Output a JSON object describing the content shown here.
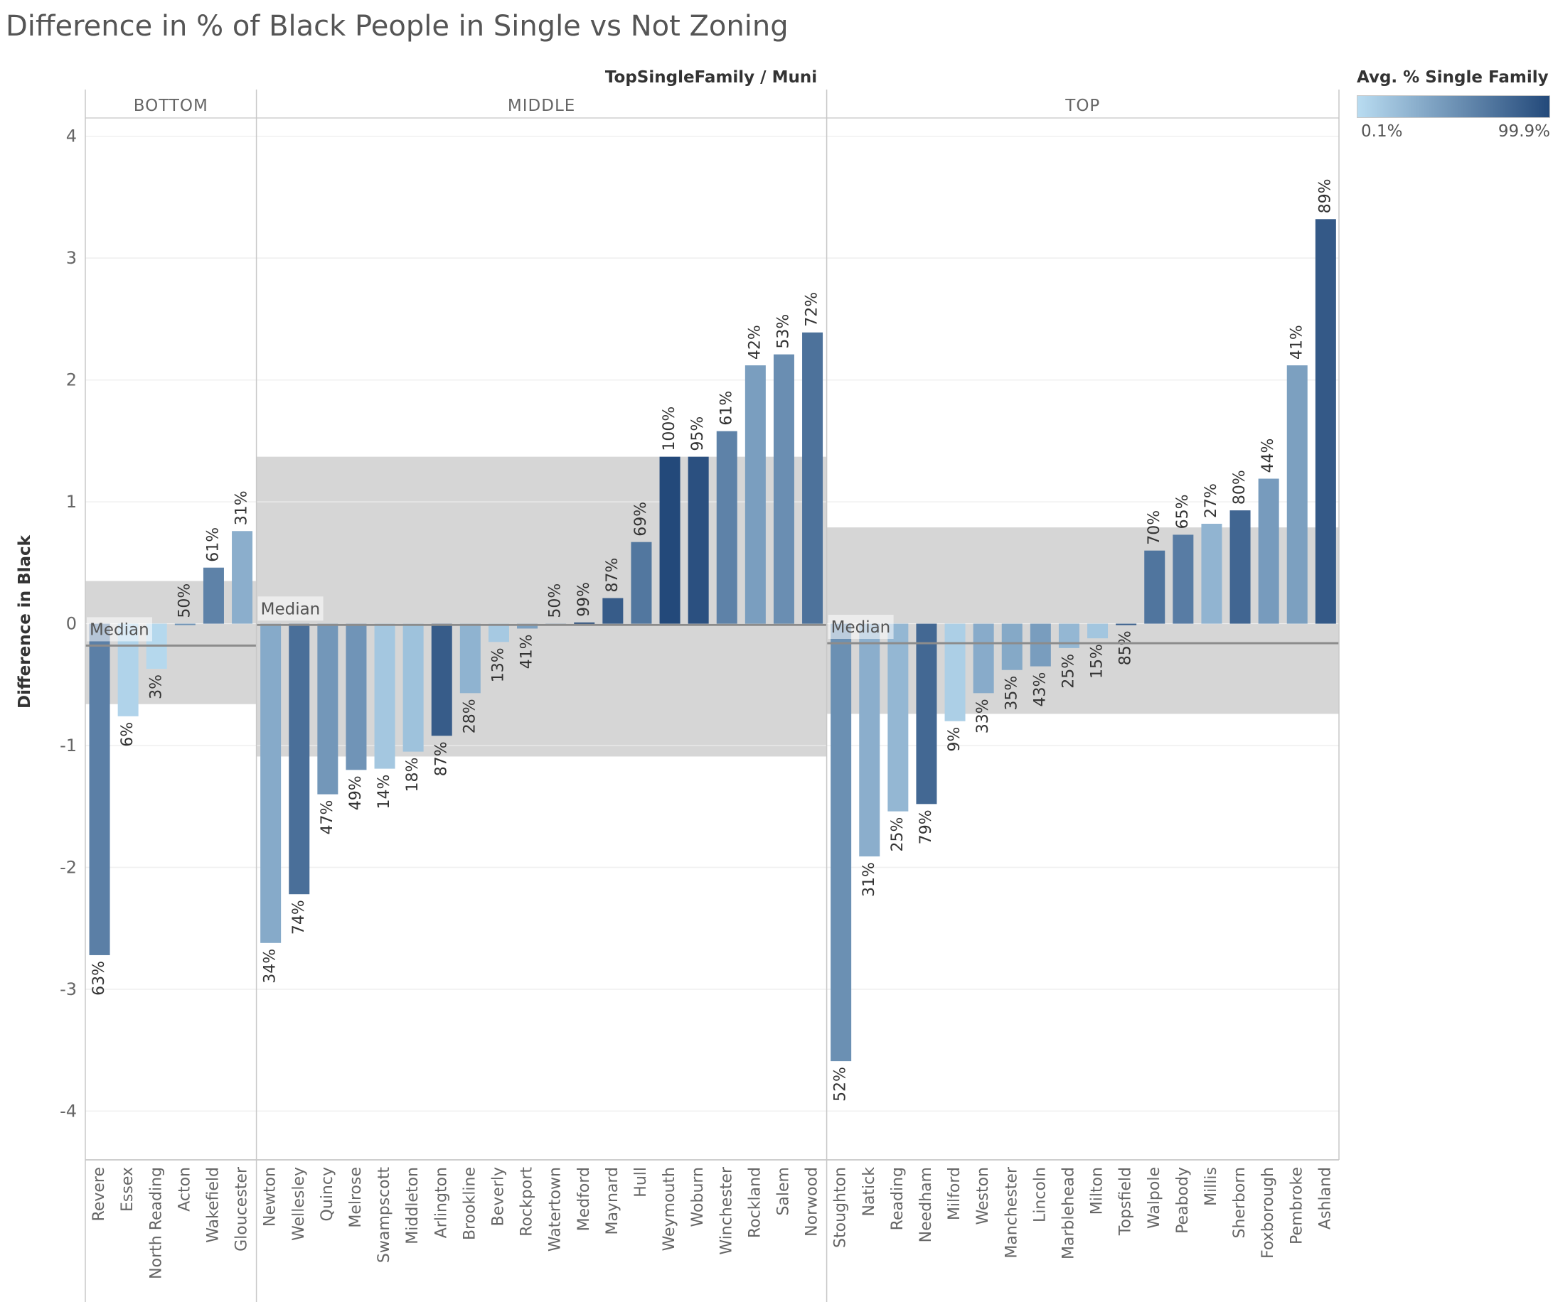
{
  "title": "Difference in % of Black People in Single  vs Not Zoning",
  "legend": {
    "title": "Avg. % Single Family",
    "min_label": "0.1%",
    "max_label": "99.9%",
    "color_low": "#b9dcf1",
    "color_high": "#23497a"
  },
  "chart_data": {
    "type": "bar",
    "column_header": "TopSingleFamily / Muni",
    "ylabel": "Difference in Black",
    "ylim": [
      -4.4,
      4.15
    ],
    "yticks": [
      4,
      3,
      2,
      1,
      0,
      -1,
      -2,
      -3,
      -4
    ],
    "ytick_labels": [
      "4",
      "3",
      "2",
      "1",
      "0",
      "-1",
      "-2",
      "-3",
      "-4"
    ],
    "reference_label": "Median",
    "reference_band_color": "#d6d6d6",
    "panels": [
      {
        "name": "BOTTOM",
        "median": -0.18,
        "band": [
          -0.66,
          0.35
        ],
        "bars": [
          {
            "muni": "Revere",
            "value": -2.72,
            "label": "63%",
            "pct": 0.63
          },
          {
            "muni": "Essex",
            "value": -0.76,
            "label": "6%",
            "pct": 0.06
          },
          {
            "muni": "North Reading",
            "value": -0.37,
            "label": "3%",
            "pct": 0.03
          },
          {
            "muni": "Acton",
            "value": 0.0,
            "label": "50%",
            "pct": 0.5
          },
          {
            "muni": "Wakefield",
            "value": 0.46,
            "label": "61%",
            "pct": 0.61
          },
          {
            "muni": "Gloucester",
            "value": 0.76,
            "label": "31%",
            "pct": 0.31
          }
        ]
      },
      {
        "name": "MIDDLE",
        "median": -0.01,
        "band": [
          -1.09,
          1.37
        ],
        "bars": [
          {
            "muni": "Newton",
            "value": -2.62,
            "label": "34%",
            "pct": 0.34
          },
          {
            "muni": "Wellesley",
            "value": -2.22,
            "label": "74%",
            "pct": 0.74
          },
          {
            "muni": "Quincy",
            "value": -1.4,
            "label": "47%",
            "pct": 0.47
          },
          {
            "muni": "Melrose",
            "value": -1.2,
            "label": "49%",
            "pct": 0.49
          },
          {
            "muni": "Swampscott",
            "value": -1.19,
            "label": "14%",
            "pct": 0.14
          },
          {
            "muni": "Middleton",
            "value": -1.05,
            "label": "18%",
            "pct": 0.18
          },
          {
            "muni": "Arlington",
            "value": -0.92,
            "label": "87%",
            "pct": 0.87
          },
          {
            "muni": "Brookline",
            "value": -0.57,
            "label": "28%",
            "pct": 0.28
          },
          {
            "muni": "Beverly",
            "value": -0.15,
            "label": "13%",
            "pct": 0.13
          },
          {
            "muni": "Rockport",
            "value": -0.04,
            "label": "41%",
            "pct": 0.41
          },
          {
            "muni": "Watertown",
            "value": 0.0,
            "label": "50%",
            "pct": 0.5
          },
          {
            "muni": "Medford",
            "value": 0.01,
            "label": "99%",
            "pct": 0.99
          },
          {
            "muni": "Maynard",
            "value": 0.21,
            "label": "87%",
            "pct": 0.87
          },
          {
            "muni": "Hull",
            "value": 0.67,
            "label": "69%",
            "pct": 0.69
          },
          {
            "muni": "Weymouth",
            "value": 1.37,
            "label": "100%",
            "pct": 1.0
          },
          {
            "muni": "Woburn",
            "value": 1.37,
            "label": "95%",
            "pct": 0.95
          },
          {
            "muni": "Winchester",
            "value": 1.58,
            "label": "61%",
            "pct": 0.61
          },
          {
            "muni": "Rockland",
            "value": 2.12,
            "label": "42%",
            "pct": 0.42
          },
          {
            "muni": "Salem",
            "value": 2.21,
            "label": "53%",
            "pct": 0.53
          },
          {
            "muni": "Norwood",
            "value": 2.39,
            "label": "72%",
            "pct": 0.72
          }
        ]
      },
      {
        "name": "TOP",
        "median": -0.16,
        "band": [
          -0.74,
          0.79
        ],
        "bars": [
          {
            "muni": "Stoughton",
            "value": -3.59,
            "label": "52%",
            "pct": 0.52
          },
          {
            "muni": "Natick",
            "value": -1.91,
            "label": "31%",
            "pct": 0.31
          },
          {
            "muni": "Reading",
            "value": -1.54,
            "label": "25%",
            "pct": 0.25
          },
          {
            "muni": "Needham",
            "value": -1.48,
            "label": "79%",
            "pct": 0.79
          },
          {
            "muni": "Milford",
            "value": -0.8,
            "label": "9%",
            "pct": 0.09
          },
          {
            "muni": "Weston",
            "value": -0.57,
            "label": "33%",
            "pct": 0.33
          },
          {
            "muni": "Manchester",
            "value": -0.38,
            "label": "35%",
            "pct": 0.35
          },
          {
            "muni": "Lincoln",
            "value": -0.35,
            "label": "43%",
            "pct": 0.43
          },
          {
            "muni": "Marblehead",
            "value": -0.2,
            "label": "25%",
            "pct": 0.25
          },
          {
            "muni": "Milton",
            "value": -0.12,
            "label": "15%",
            "pct": 0.15
          },
          {
            "muni": "Topsfield",
            "value": -0.01,
            "label": "85%",
            "pct": 0.85
          },
          {
            "muni": "Walpole",
            "value": 0.6,
            "label": "70%",
            "pct": 0.7
          },
          {
            "muni": "Peabody",
            "value": 0.73,
            "label": "65%",
            "pct": 0.65
          },
          {
            "muni": "Millis",
            "value": 0.82,
            "label": "27%",
            "pct": 0.27
          },
          {
            "muni": "Sherborn",
            "value": 0.93,
            "label": "80%",
            "pct": 0.8
          },
          {
            "muni": "Foxborough",
            "value": 1.19,
            "label": "44%",
            "pct": 0.44
          },
          {
            "muni": "Pembroke",
            "value": 2.12,
            "label": "41%",
            "pct": 0.41
          },
          {
            "muni": "Ashland",
            "value": 3.32,
            "label": "89%",
            "pct": 0.89
          }
        ]
      }
    ]
  }
}
